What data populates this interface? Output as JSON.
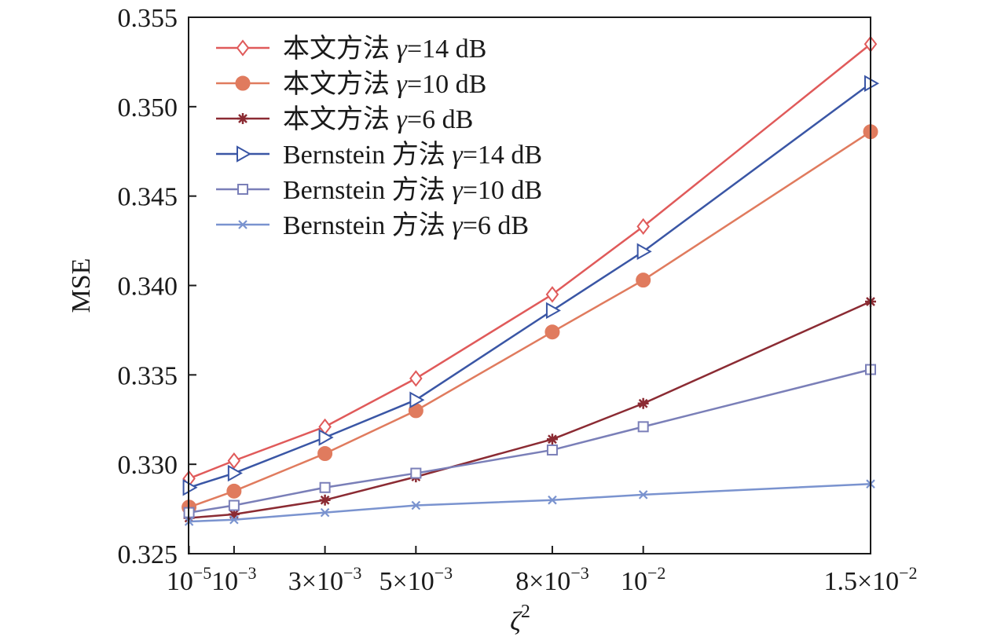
{
  "chart_data": {
    "type": "line",
    "xlabel": "ζ",
    "xlabel_sup": "2",
    "ylabel": "MSE",
    "xlim": [
      0.0,
      0.015
    ],
    "ylim": [
      0.325,
      0.355
    ],
    "grid": false,
    "legend_position": "top-left",
    "x": [
      1e-05,
      0.001,
      0.003,
      0.005,
      0.008,
      0.01,
      0.015
    ],
    "x_ticks": [
      {
        "value": 1e-05,
        "mantissa": "10",
        "sup": "−5"
      },
      {
        "value": 0.001,
        "mantissa": "10",
        "sup": "−3"
      },
      {
        "value": 0.003,
        "mantissa": "3×10",
        "sup": "−3"
      },
      {
        "value": 0.005,
        "mantissa": "5×10",
        "sup": "−3"
      },
      {
        "value": 0.008,
        "mantissa": "8×10",
        "sup": "−3"
      },
      {
        "value": 0.01,
        "mantissa": "10",
        "sup": "−2"
      },
      {
        "value": 0.015,
        "mantissa": "1.5×10",
        "sup": "−2"
      }
    ],
    "y_ticks": [
      {
        "value": 0.325,
        "label": "0.325"
      },
      {
        "value": 0.33,
        "label": "0.330"
      },
      {
        "value": 0.335,
        "label": "0.335"
      },
      {
        "value": 0.34,
        "label": "0.340"
      },
      {
        "value": 0.345,
        "label": "0.345"
      },
      {
        "value": 0.35,
        "label": "0.350"
      },
      {
        "value": 0.355,
        "label": "0.355"
      }
    ],
    "series": [
      {
        "prefix": "本文方法 ",
        "gamma": "γ",
        "suffix": "=14 dB",
        "color": "#e05a5a",
        "marker": "diamond",
        "values": [
          0.3292,
          0.3302,
          0.3321,
          0.3348,
          0.3395,
          0.3433,
          0.3535
        ]
      },
      {
        "prefix": "本文方法 ",
        "gamma": "γ",
        "suffix": "=10 dB",
        "color": "#e07b5e",
        "marker": "circle",
        "values": [
          0.3276,
          0.3285,
          0.3306,
          0.333,
          0.3374,
          0.3403,
          0.3486
        ]
      },
      {
        "prefix": "本文方法 ",
        "gamma": "γ",
        "suffix": "=6 dB",
        "color": "#8b2b33",
        "marker": "asterisk",
        "values": [
          0.327,
          0.3272,
          0.328,
          0.3293,
          0.3314,
          0.3334,
          0.3391
        ]
      },
      {
        "prefix": "Bernstein 方法 ",
        "gamma": "γ",
        "suffix": "=14 dB",
        "color": "#3a56a5",
        "marker": "triangle-right",
        "values": [
          0.3287,
          0.3295,
          0.3315,
          0.3336,
          0.3386,
          0.3419,
          0.3513
        ]
      },
      {
        "prefix": "Bernstein 方法 ",
        "gamma": "γ",
        "suffix": "=10 dB",
        "color": "#7a7fb8",
        "marker": "square",
        "values": [
          0.3273,
          0.3277,
          0.3287,
          0.3295,
          0.3308,
          0.3321,
          0.3353
        ]
      },
      {
        "prefix": "Bernstein 方法 ",
        "gamma": "γ",
        "suffix": "=6 dB",
        "color": "#7a93cf",
        "marker": "x",
        "values": [
          0.3268,
          0.3269,
          0.3273,
          0.3277,
          0.328,
          0.3283,
          0.3289
        ]
      }
    ]
  }
}
